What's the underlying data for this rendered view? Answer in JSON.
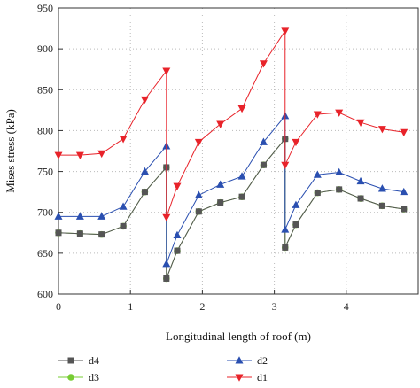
{
  "chart_data": {
    "type": "line",
    "xlabel": "Longitudinal length of roof (m)",
    "ylabel": "Mises stress (kPa)",
    "xlim": [
      0,
      5
    ],
    "ylim": [
      600,
      950
    ],
    "xticks": [
      0,
      1,
      2,
      3,
      4
    ],
    "yticks": [
      600,
      650,
      700,
      750,
      800,
      850,
      900,
      950
    ],
    "grid": "dotted vertical and horizontal",
    "legend_position": "bottom",
    "series": [
      {
        "name": "d4",
        "color": "#555555",
        "marker": "square",
        "x": [
          0,
          0.3,
          0.6,
          0.9,
          1.2,
          1.5,
          1.5,
          1.65,
          1.95,
          2.25,
          2.55,
          2.85,
          3.15,
          3.15,
          3.3,
          3.6,
          3.9,
          4.2,
          4.5,
          4.8
        ],
        "y": [
          675,
          674,
          673,
          683,
          725,
          755,
          619,
          653,
          701,
          712,
          719,
          758,
          790,
          657,
          685,
          724,
          728,
          717,
          708,
          704
        ]
      },
      {
        "name": "d3",
        "color": "#77cc33",
        "marker": "circle",
        "x": [
          0,
          0.3,
          0.6,
          0.9,
          1.2,
          1.5,
          1.5,
          1.65,
          1.95,
          2.25,
          2.55,
          2.85,
          3.15,
          3.15,
          3.3,
          3.6,
          3.9,
          4.2,
          4.5,
          4.8
        ],
        "y": [
          675,
          674,
          673,
          683,
          725,
          755,
          619,
          653,
          701,
          712,
          719,
          758,
          790,
          657,
          685,
          724,
          728,
          717,
          708,
          704
        ]
      },
      {
        "name": "d2",
        "color": "#2a4fb0",
        "marker": "triangle-up",
        "x": [
          0,
          0.3,
          0.6,
          0.9,
          1.2,
          1.5,
          1.5,
          1.65,
          1.95,
          2.25,
          2.55,
          2.85,
          3.15,
          3.15,
          3.3,
          3.6,
          3.9,
          4.2,
          4.5,
          4.8
        ],
        "y": [
          695,
          695,
          695,
          707,
          750,
          781,
          637,
          672,
          721,
          734,
          744,
          786,
          818,
          679,
          709,
          746,
          749,
          738,
          729,
          725
        ]
      },
      {
        "name": "d1",
        "color": "#e8232a",
        "marker": "triangle-down",
        "x": [
          0,
          0.3,
          0.6,
          0.9,
          1.2,
          1.5,
          1.5,
          1.65,
          1.95,
          2.25,
          2.55,
          2.85,
          3.15,
          3.15,
          3.3,
          3.6,
          3.9,
          4.2,
          4.5,
          4.8
        ],
        "y": [
          770,
          770,
          772,
          790,
          838,
          873,
          694,
          732,
          786,
          808,
          827,
          882,
          922,
          758,
          786,
          820,
          822,
          810,
          802,
          798
        ]
      }
    ]
  }
}
